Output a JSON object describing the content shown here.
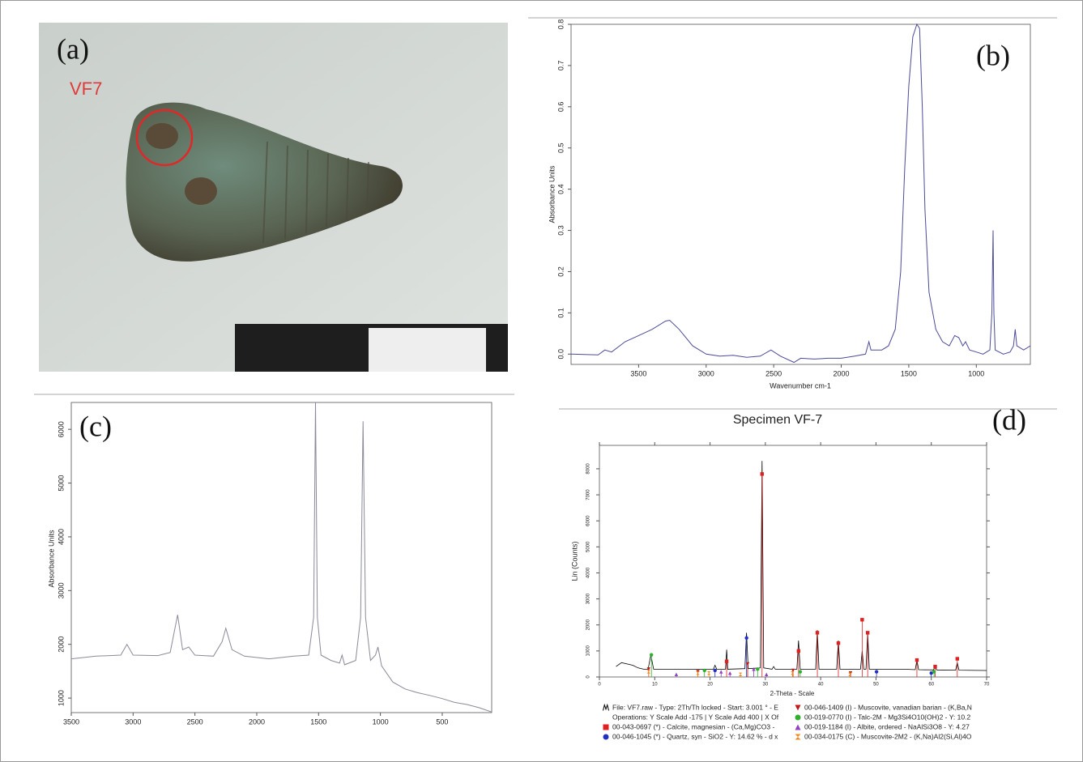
{
  "photo": {
    "label": "(a)",
    "sample": "VF7"
  },
  "chart_data": [
    {
      "type": "line",
      "panel": "(b)",
      "xlabel": "Wavenumber cm-1",
      "ylabel": "Absorbance Units",
      "color": "#4b4b9a",
      "xlim": [
        4000,
        600
      ],
      "ylim": [
        -0.025,
        0.8
      ],
      "xticks": [
        3500,
        3000,
        2500,
        2000,
        1500,
        1000
      ],
      "yticks": [
        {
          "value": 0,
          "label": "0.0"
        },
        0.1,
        0.2,
        0.3,
        0.4,
        0.5,
        0.6,
        0.7,
        0.8
      ],
      "x": [
        4000,
        3800,
        3750,
        3700,
        3600,
        3500,
        3400,
        3300,
        3270,
        3200,
        3100,
        3000,
        2900,
        2800,
        2700,
        2600,
        2520,
        2450,
        2350,
        2300,
        2200,
        2100,
        2000,
        1900,
        1820,
        1795,
        1780,
        1700,
        1650,
        1600,
        1560,
        1530,
        1500,
        1470,
        1440,
        1420,
        1400,
        1380,
        1350,
        1300,
        1250,
        1200,
        1160,
        1130,
        1100,
        1080,
        1050,
        1000,
        950,
        900,
        885,
        876,
        870,
        860,
        800,
        750,
        725,
        712,
        700,
        650,
        600
      ],
      "values": [
        0.0,
        -0.002,
        0.01,
        0.005,
        0.03,
        0.045,
        0.06,
        0.08,
        0.082,
        0.06,
        0.02,
        0.0,
        -0.005,
        -0.003,
        -0.008,
        -0.005,
        0.01,
        -0.005,
        -0.02,
        -0.01,
        -0.012,
        -0.01,
        -0.01,
        -0.005,
        0.0,
        0.03,
        0.01,
        0.01,
        0.02,
        0.06,
        0.2,
        0.45,
        0.65,
        0.77,
        0.8,
        0.79,
        0.6,
        0.35,
        0.15,
        0.06,
        0.03,
        0.02,
        0.045,
        0.04,
        0.02,
        0.03,
        0.01,
        0.005,
        0.0,
        0.01,
        0.1,
        0.3,
        0.1,
        0.01,
        0.0,
        0.005,
        0.02,
        0.06,
        0.02,
        0.01,
        0.02
      ]
    },
    {
      "type": "line",
      "panel": "(c)",
      "ylabel": "Absorbance Units",
      "color": "#8a8a9a",
      "xlim": [
        3500,
        100
      ],
      "ylim": [
        730,
        6500
      ],
      "xticks": [
        3500,
        3000,
        2500,
        2000,
        1500,
        1000,
        500
      ],
      "yticks": [
        1000,
        2000,
        3000,
        4000,
        5000,
        6000
      ],
      "x": [
        3500,
        3300,
        3100,
        3050,
        3000,
        2800,
        2700,
        2640,
        2600,
        2550,
        2500,
        2350,
        2280,
        2250,
        2200,
        2100,
        1900,
        1700,
        1580,
        1540,
        1525,
        1510,
        1480,
        1400,
        1330,
        1310,
        1290,
        1200,
        1160,
        1140,
        1120,
        1080,
        1040,
        1020,
        990,
        900,
        800,
        700,
        600,
        500,
        400,
        300,
        200,
        100
      ],
      "values": [
        1730,
        1780,
        1800,
        2000,
        1800,
        1790,
        1850,
        2550,
        1900,
        1950,
        1800,
        1780,
        2050,
        2300,
        1900,
        1780,
        1730,
        1780,
        1800,
        2500,
        6500,
        2500,
        1800,
        1700,
        1650,
        1800,
        1620,
        1700,
        2500,
        6150,
        2500,
        1700,
        1800,
        1950,
        1600,
        1300,
        1170,
        1100,
        1050,
        990,
        920,
        880,
        820,
        740
      ]
    },
    {
      "type": "xrd",
      "title": "Specimen VF-7",
      "panel": "(d)",
      "xlabel": "2-Theta - Scale",
      "ylabel": "Lin (Counts)",
      "xlim": [
        0,
        70
      ],
      "ylim": [
        0,
        8900
      ],
      "xticks": [
        0,
        10,
        20,
        30,
        40,
        50,
        60,
        70
      ],
      "yticks": [
        0,
        1000,
        2000,
        3000,
        4000,
        5000,
        6000,
        7000,
        8000
      ],
      "legend_note": "Operations: Y Scale Add -175 | Y Scale Add 400 | X Of",
      "series": [
        {
          "name": "File: VF7.raw - Type: 2Th/Th locked - Start: 3.001 ° - E",
          "color": "#000000",
          "marker": "line",
          "x": [
            3,
            4,
            5,
            6,
            7,
            8,
            8.8,
            9.3,
            9.8,
            12,
            15,
            18,
            20.6,
            20.9,
            21.2,
            22.8,
            23.0,
            23.2,
            26.3,
            26.6,
            26.9,
            29.1,
            29.4,
            29.7,
            31.2,
            31.5,
            31.8,
            35.7,
            36.0,
            36.3,
            39.1,
            39.4,
            39.7,
            42.9,
            43.2,
            43.5,
            47.2,
            47.5,
            47.8,
            48.2,
            48.5,
            48.8,
            50,
            55,
            57.1,
            57.4,
            57.7,
            60.4,
            60.7,
            61.0,
            64.4,
            64.7,
            65.0,
            70
          ],
          "values": [
            400,
            550,
            500,
            450,
            350,
            300,
            300,
            850,
            300,
            300,
            300,
            300,
            300,
            450,
            300,
            300,
            1050,
            300,
            320,
            1700,
            320,
            350,
            8300,
            350,
            300,
            400,
            300,
            300,
            1400,
            300,
            300,
            1800,
            300,
            300,
            1400,
            300,
            300,
            1000,
            300,
            300,
            1700,
            300,
            300,
            300,
            280,
            650,
            280,
            270,
            400,
            270,
            260,
            550,
            260,
            250
          ]
        },
        {
          "name": "00-043-0697 (*) - Calcite, magnesian - (Ca,Mg)CO3 -",
          "color": "#e02020",
          "marker": "square",
          "x": [
            23.0,
            29.4,
            36.0,
            39.4,
            43.2,
            47.5,
            48.5,
            57.4,
            60.7,
            64.7
          ],
          "values": [
            600,
            7800,
            1000,
            1700,
            1300,
            2200,
            1700,
            650,
            400,
            700
          ]
        },
        {
          "name": "00-046-1045 (*) - Quartz, syn - SiO2 - Y: 14.62 % - d x",
          "color": "#2030c0",
          "marker": "circle",
          "x": [
            20.9,
            26.6,
            50.1,
            60.0
          ],
          "values": [
            250,
            1500,
            200,
            150
          ]
        },
        {
          "name": "00-046-1409 (I) - Muscovite, vanadian barian - (K,Ba,N",
          "color": "#c01818",
          "marker": "triangle-down",
          "x": [
            8.9,
            17.8,
            26.8,
            35.0,
            45.4
          ],
          "values": [
            300,
            200,
            500,
            250,
            150
          ]
        },
        {
          "name": "00-019-0770 (I) - Talc-2M - Mg3Si4O10(OH)2 - Y: 10.2",
          "color": "#30b030",
          "marker": "circle",
          "x": [
            9.4,
            19.0,
            28.6,
            36.3,
            60.5
          ],
          "values": [
            850,
            250,
            300,
            200,
            200
          ]
        },
        {
          "name": "00-019-1184 (I) - Albite, ordered - NaAlSi3O8 - Y: 4.27",
          "color": "#9040c0",
          "marker": "triangle-up",
          "x": [
            13.9,
            22.0,
            23.6,
            27.9,
            30.2
          ],
          "values": [
            100,
            200,
            150,
            300,
            100
          ]
        },
        {
          "name": "00-034-0175 (C) - Muscovite-2M2 - (K,Na)Al2(Si,Al)4O",
          "color": "#f08a20",
          "marker": "hourglass",
          "x": [
            8.9,
            17.8,
            19.8,
            25.5,
            34.9,
            45.3
          ],
          "values": [
            200,
            150,
            150,
            100,
            150,
            100
          ]
        }
      ]
    }
  ]
}
